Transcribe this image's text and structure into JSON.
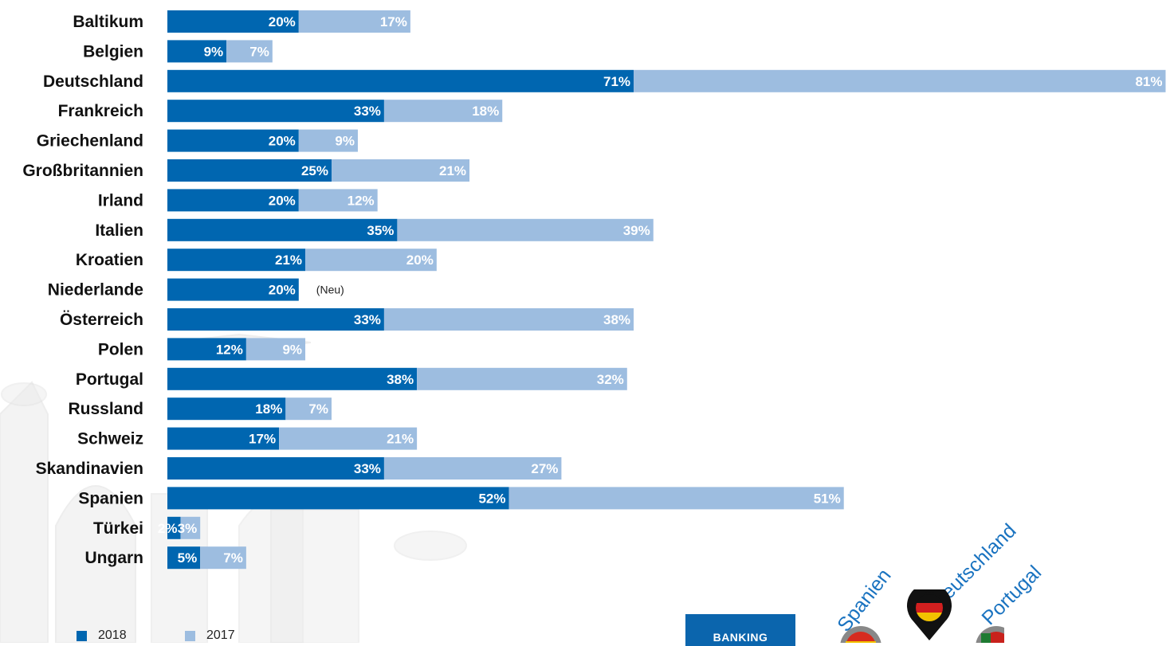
{
  "chart_data": {
    "type": "bar",
    "orientation": "horizontal",
    "stacked": true,
    "categories": [
      "Baltikum",
      "Belgien",
      "Deutschland",
      "Frankreich",
      "Griechenland",
      "Großbritannien",
      "Irland",
      "Italien",
      "Kroatien",
      "Niederlande",
      "Österreich",
      "Polen",
      "Portugal",
      "Russland",
      "Schweiz",
      "Skandinavien",
      "Spanien",
      "Türkei",
      "Ungarn"
    ],
    "series": [
      {
        "name": "2018",
        "color": "#0066b0",
        "values": [
          20,
          9,
          71,
          33,
          20,
          25,
          20,
          35,
          21,
          20,
          33,
          12,
          38,
          18,
          17,
          33,
          52,
          2,
          5
        ],
        "labels": [
          "20%",
          "9%",
          "71%",
          "33%",
          "20%",
          "25%",
          "20%",
          "35%",
          "21%",
          "20%",
          "33%",
          "12%",
          "38%",
          "18%",
          "17%",
          "33%",
          "52%",
          "2%",
          "5%"
        ]
      },
      {
        "name": "2017",
        "color": "#9dbde0",
        "values": [
          17,
          7,
          81,
          18,
          9,
          21,
          12,
          39,
          20,
          null,
          38,
          9,
          32,
          7,
          21,
          27,
          51,
          3,
          7
        ],
        "labels": [
          "17%",
          "7%",
          "81%",
          "18%",
          "9%",
          "21%",
          "12%",
          "39%",
          "20%",
          "",
          "38%",
          "9%",
          "32%",
          "7%",
          "21%",
          "27%",
          "51%",
          "3%",
          "7%"
        ]
      }
    ],
    "annotations": [
      {
        "category": "Niederlande",
        "text": "(Neu)"
      }
    ],
    "legend": "bottom-left"
  },
  "banking_box": {
    "label": "BANKING"
  },
  "ranking": {
    "names": [
      "Spanien",
      "Deutschland",
      "Portugal"
    ],
    "accent_color": "#1a73c0"
  }
}
